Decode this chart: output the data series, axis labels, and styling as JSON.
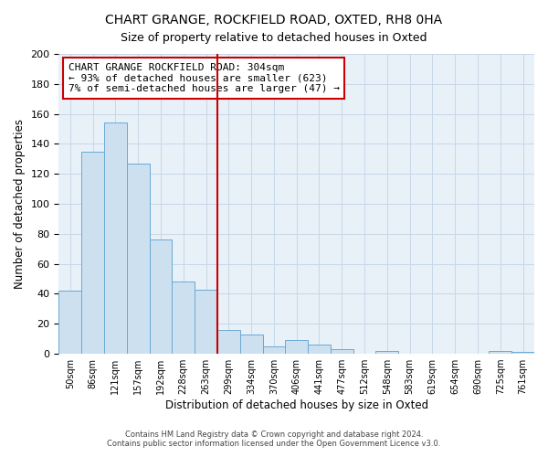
{
  "title": "CHART GRANGE, ROCKFIELD ROAD, OXTED, RH8 0HA",
  "subtitle": "Size of property relative to detached houses in Oxted",
  "xlabel": "Distribution of detached houses by size in Oxted",
  "ylabel": "Number of detached properties",
  "bar_labels": [
    "50sqm",
    "86sqm",
    "121sqm",
    "157sqm",
    "192sqm",
    "228sqm",
    "263sqm",
    "299sqm",
    "334sqm",
    "370sqm",
    "406sqm",
    "441sqm",
    "477sqm",
    "512sqm",
    "548sqm",
    "583sqm",
    "619sqm",
    "654sqm",
    "690sqm",
    "725sqm",
    "761sqm"
  ],
  "bar_values": [
    42,
    135,
    154,
    127,
    76,
    48,
    43,
    16,
    13,
    5,
    9,
    6,
    3,
    0,
    2,
    0,
    0,
    0,
    0,
    2,
    1
  ],
  "bar_color": "#cce0f0",
  "bar_edge_color": "#6aaad4",
  "vline_x": 7.0,
  "vline_color": "#cc0000",
  "annotation_line1": "CHART GRANGE ROCKFIELD ROAD: 304sqm",
  "annotation_line2": "← 93% of detached houses are smaller (623)",
  "annotation_line3": "7% of semi-detached houses are larger (47) →",
  "annotation_box_color": "#ffffff",
  "annotation_box_edge": "#cc0000",
  "ylim": [
    0,
    200
  ],
  "yticks": [
    0,
    20,
    40,
    60,
    80,
    100,
    120,
    140,
    160,
    180,
    200
  ],
  "footer1": "Contains HM Land Registry data © Crown copyright and database right 2024.",
  "footer2": "Contains public sector information licensed under the Open Government Licence v3.0.",
  "background_color": "#ffffff",
  "plot_bg_color": "#e8f0f8",
  "grid_color": "#c8d8e8"
}
